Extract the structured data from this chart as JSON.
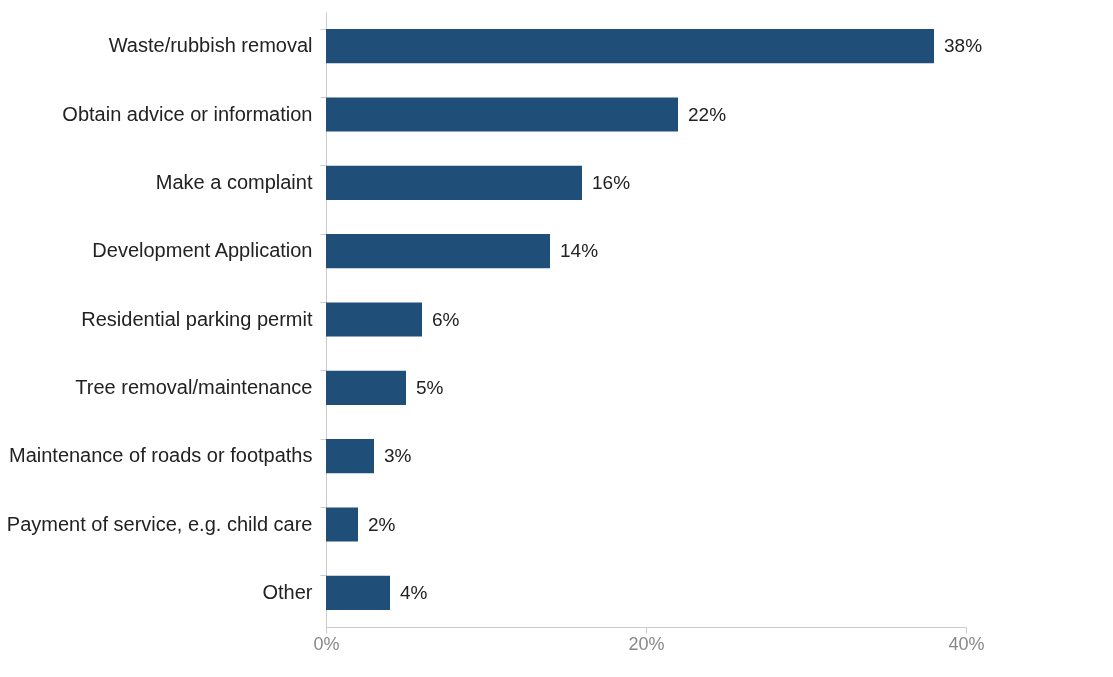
{
  "chart_data": {
    "type": "bar",
    "orientation": "horizontal",
    "categories": [
      "Waste/rubbish removal",
      "Obtain advice or information",
      "Make a complaint",
      "Development Application",
      "Residential parking permit",
      "Tree removal/maintenance",
      "Maintenance of roads or footpaths",
      "Payment of service, e.g. child care",
      "Other"
    ],
    "values": [
      38,
      22,
      16,
      14,
      6,
      5,
      3,
      2,
      4
    ],
    "value_labels": [
      "38%",
      "22%",
      "16%",
      "14%",
      "6%",
      "5%",
      "3%",
      "2%",
      "4%"
    ],
    "color": "#1f4e79",
    "xlim": [
      0,
      40
    ],
    "xticks": [
      {
        "value": 0,
        "label": "0%"
      },
      {
        "value": 20,
        "label": "20%"
      },
      {
        "value": 40,
        "label": "40%"
      }
    ],
    "grid": false
  }
}
